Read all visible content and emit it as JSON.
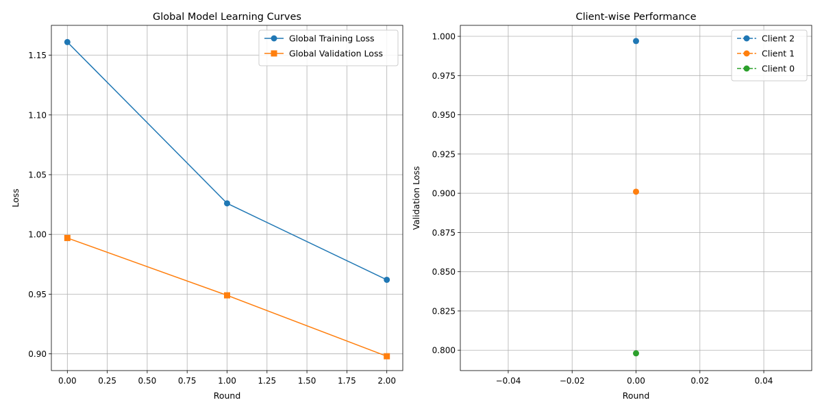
{
  "chart_data": [
    {
      "type": "line",
      "title": "Global Model Learning Curves",
      "xlabel": "Round",
      "ylabel": "Loss",
      "xlim": [
        -0.1,
        2.1
      ],
      "ylim": [
        0.886,
        1.175
      ],
      "xticks": [
        0.0,
        0.25,
        0.5,
        0.75,
        1.0,
        1.25,
        1.5,
        1.75,
        2.0
      ],
      "xtick_labels": [
        "0.00",
        "0.25",
        "0.50",
        "0.75",
        "1.00",
        "1.25",
        "1.50",
        "1.75",
        "2.00"
      ],
      "yticks": [
        0.9,
        0.95,
        1.0,
        1.05,
        1.1,
        1.15
      ],
      "ytick_labels": [
        "0.90",
        "0.95",
        "1.00",
        "1.05",
        "1.10",
        "1.15"
      ],
      "grid": true,
      "legend": "top-right",
      "series": [
        {
          "name": "Global Training Loss",
          "x": [
            0,
            1,
            2
          ],
          "y": [
            1.161,
            1.026,
            0.962
          ],
          "color": "#1f77b4",
          "marker": "circle",
          "linestyle": "solid"
        },
        {
          "name": "Global Validation Loss",
          "x": [
            0,
            1,
            2
          ],
          "y": [
            0.997,
            0.949,
            0.898
          ],
          "color": "#ff7f0e",
          "marker": "square",
          "linestyle": "solid"
        }
      ]
    },
    {
      "type": "scatter",
      "title": "Client-wise Performance",
      "xlabel": "Round",
      "ylabel": "Validation Loss",
      "xlim": [
        -0.055,
        0.055
      ],
      "ylim": [
        0.787,
        1.007
      ],
      "xticks": [
        -0.04,
        -0.02,
        0.0,
        0.02,
        0.04
      ],
      "xtick_labels": [
        "−0.04",
        "−0.02",
        "0.00",
        "0.02",
        "0.04"
      ],
      "yticks": [
        0.8,
        0.825,
        0.85,
        0.875,
        0.9,
        0.925,
        0.95,
        0.975,
        1.0
      ],
      "ytick_labels": [
        "0.800",
        "0.825",
        "0.850",
        "0.875",
        "0.900",
        "0.925",
        "0.950",
        "0.975",
        "1.000"
      ],
      "grid": true,
      "legend": "top-right",
      "series": [
        {
          "name": "Client 2",
          "x": [
            0
          ],
          "y": [
            0.997
          ],
          "color": "#1f77b4",
          "marker": "circle",
          "linestyle": "dashed"
        },
        {
          "name": "Client 1",
          "x": [
            0
          ],
          "y": [
            0.901
          ],
          "color": "#ff7f0e",
          "marker": "circle",
          "linestyle": "dashed"
        },
        {
          "name": "Client 0",
          "x": [
            0
          ],
          "y": [
            0.798
          ],
          "color": "#2ca02c",
          "marker": "circle",
          "linestyle": "dashed"
        }
      ]
    }
  ]
}
